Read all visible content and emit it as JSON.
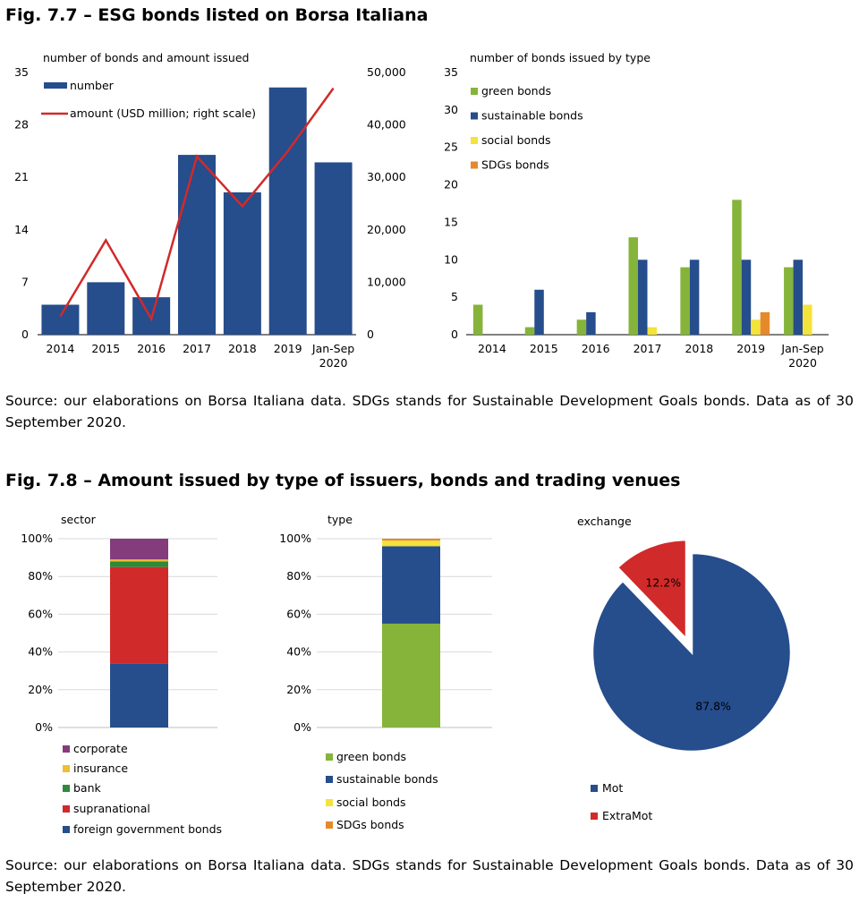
{
  "fig77": {
    "title": "Fig. 7.7 – ESG bonds listed on Borsa Italiana",
    "source": "Source: our elaborations on Borsa Italiana data. SDGs stands for Sustainable Development Goals bonds. Data as of 30 September 2020."
  },
  "fig78": {
    "title": "Fig. 7.8 – Amount issued by type of issuers, bonds and trading venues",
    "source": "Source: our elaborations on Borsa Italiana data. SDGs stands for Sustainable Development Goals bonds. Data as of 30 September 2020."
  },
  "colors": {
    "navy": "#264d8c",
    "red": "#d12a2a",
    "green": "#86b43a",
    "yellow": "#f3e33b",
    "orange": "#e58a2c",
    "purple": "#843c7c",
    "gold": "#f0be32",
    "darkgreen": "#2f8a3a",
    "grid": "#d9d9d9"
  },
  "chart_data": [
    {
      "id": "c1",
      "type": "bar+line",
      "title": "number of bonds and amount issued",
      "categories": [
        "2014",
        "2015",
        "2016",
        "2017",
        "2018",
        "2019",
        "Jan-Sep 2020"
      ],
      "series": [
        {
          "name": "number",
          "kind": "bar",
          "axis": "left",
          "values": [
            4,
            7,
            5,
            24,
            19,
            33,
            23
          ]
        },
        {
          "name": "amount (USD million; right scale)",
          "kind": "line",
          "axis": "right",
          "values": [
            3500,
            18000,
            3000,
            34000,
            24500,
            35000,
            47000
          ]
        }
      ],
      "ylim": [
        0,
        35
      ],
      "yticks": [
        "0",
        "7",
        "14",
        "21",
        "28",
        "35"
      ],
      "y2lim": [
        0,
        50000
      ],
      "y2ticks": [
        "0",
        "10,000",
        "20,000",
        "30,000",
        "40,000",
        "50,000"
      ],
      "legend": "top-left",
      "grid": false
    },
    {
      "id": "c2",
      "type": "bar",
      "title": "number of bonds issued by type",
      "categories": [
        "2014",
        "2015",
        "2016",
        "2017",
        "2018",
        "2019",
        "Jan-Sep 2020"
      ],
      "series": [
        {
          "name": "green bonds",
          "values": [
            4,
            1,
            2,
            13,
            9,
            18,
            9
          ]
        },
        {
          "name": "sustainable bonds",
          "values": [
            0,
            6,
            3,
            10,
            10,
            10,
            10
          ]
        },
        {
          "name": "social bonds",
          "values": [
            0,
            0,
            0,
            1,
            0,
            2,
            4
          ]
        },
        {
          "name": "SDGs bonds",
          "values": [
            0,
            0,
            0,
            0,
            0,
            3,
            0
          ]
        }
      ],
      "ylim": [
        0,
        35
      ],
      "yticks": [
        "0",
        "5",
        "10",
        "15",
        "20",
        "25",
        "30",
        "35"
      ],
      "legend": "top-left",
      "grid": false
    },
    {
      "id": "c3",
      "type": "bar",
      "stacked": true,
      "title": "sector",
      "series": [
        {
          "name": "foreign government bonds",
          "values": [
            34
          ]
        },
        {
          "name": "supranational",
          "values": [
            51
          ]
        },
        {
          "name": "bank",
          "values": [
            3
          ]
        },
        {
          "name": "insurance",
          "values": [
            1
          ]
        },
        {
          "name": "corporate",
          "values": [
            11
          ]
        }
      ],
      "ylim": [
        0,
        100
      ],
      "yticks": [
        "0%",
        "20%",
        "40%",
        "60%",
        "80%",
        "100%"
      ],
      "legend": "bottom",
      "grid": true
    },
    {
      "id": "c4",
      "type": "bar",
      "stacked": true,
      "title": "type",
      "series": [
        {
          "name": "green bonds",
          "values": [
            55
          ]
        },
        {
          "name": "sustainable bonds",
          "values": [
            41
          ]
        },
        {
          "name": "social bonds",
          "values": [
            3
          ]
        },
        {
          "name": "SDGs bonds",
          "values": [
            1
          ]
        }
      ],
      "ylim": [
        0,
        100
      ],
      "yticks": [
        "0%",
        "20%",
        "40%",
        "60%",
        "80%",
        "100%"
      ],
      "legend": "bottom",
      "grid": true
    },
    {
      "id": "c5",
      "type": "pie",
      "title": "exchange",
      "labels": [
        "Mot",
        "ExtraMot"
      ],
      "values": [
        87.8,
        12.2
      ],
      "data_labels": [
        "87.8%",
        "12.2%"
      ],
      "legend": "bottom"
    }
  ]
}
